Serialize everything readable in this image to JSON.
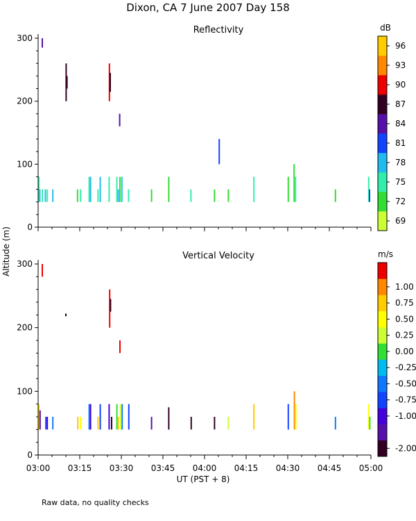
{
  "figure": {
    "title": "Dixon, CA  7 June 2007  Day 158",
    "y_axis_label": "Altitude (m)",
    "x_axis_label": "UT  (PST + 8)",
    "footnote": "Raw data, no quality checks"
  },
  "chart_data": [
    {
      "type": "heatmap",
      "title": "Reflectivity",
      "colorbar_unit": "dB",
      "xlim": [
        0,
        120
      ],
      "ylim": [
        0,
        300
      ],
      "x_ticks": [
        0,
        15,
        30,
        45,
        60,
        75,
        90,
        105,
        120
      ],
      "x_tick_labels": [
        "03:00",
        "03:15",
        "03:30",
        "03:45",
        "04:00",
        "04:15",
        "04:30",
        "04:45",
        "05:00"
      ],
      "y_ticks": [
        0,
        100,
        200,
        300
      ],
      "y_tick_labels": [
        "0",
        "100",
        "200",
        "300"
      ],
      "colorbar": {
        "colors": [
          "#ccff33",
          "#33dd33",
          "#33eeaa",
          "#22bbee",
          "#1144ff",
          "#5511aa",
          "#330022",
          "#ee0000",
          "#ff8800",
          "#ffcc00"
        ],
        "tick_labels": [
          "69",
          "72",
          "75",
          "78",
          "81",
          "84",
          "87",
          "90",
          "93",
          "96"
        ]
      },
      "segments": [
        {
          "t": 0.3,
          "y0": 40,
          "y1": 80,
          "c": "#33eeaa"
        },
        {
          "t": 0.6,
          "y0": 40,
          "y1": 60,
          "c": "#22bbee"
        },
        {
          "t": 1.5,
          "y0": 40,
          "y1": 60,
          "c": "#33eeaa"
        },
        {
          "t": 1.5,
          "y0": 285,
          "y1": 300,
          "c": "#5511aa"
        },
        {
          "t": 2.6,
          "y0": 40,
          "y1": 60,
          "c": "#22bbee"
        },
        {
          "t": 3.3,
          "y0": 40,
          "y1": 60,
          "c": "#33eeaa"
        },
        {
          "t": 5.3,
          "y0": 40,
          "y1": 60,
          "c": "#22bbee"
        },
        {
          "t": 10.1,
          "y0": 200,
          "y1": 260,
          "c": "#330022"
        },
        {
          "t": 10.4,
          "y0": 220,
          "y1": 240,
          "c": "#330022"
        },
        {
          "t": 14.2,
          "y0": 40,
          "y1": 60,
          "c": "#33dd33"
        },
        {
          "t": 15.3,
          "y0": 40,
          "y1": 60,
          "c": "#33eeaa"
        },
        {
          "t": 18.4,
          "y0": 40,
          "y1": 80,
          "c": "#33eeaa"
        },
        {
          "t": 18.9,
          "y0": 40,
          "y1": 80,
          "c": "#22bbee"
        },
        {
          "t": 21.6,
          "y0": 40,
          "y1": 60,
          "c": "#33eeaa"
        },
        {
          "t": 22.4,
          "y0": 40,
          "y1": 80,
          "c": "#22bbee"
        },
        {
          "t": 25.6,
          "y0": 40,
          "y1": 80,
          "c": "#33eeaa"
        },
        {
          "t": 25.7,
          "y0": 200,
          "y1": 260,
          "c": "#ee0000"
        },
        {
          "t": 26.0,
          "y0": 215,
          "y1": 245,
          "c": "#330022"
        },
        {
          "t": 28.4,
          "y0": 40,
          "y1": 80,
          "c": "#33eeaa"
        },
        {
          "t": 28.9,
          "y0": 40,
          "y1": 60,
          "c": "#22bbee"
        },
        {
          "t": 29.4,
          "y0": 160,
          "y1": 180,
          "c": "#5511aa"
        },
        {
          "t": 29.5,
          "y0": 40,
          "y1": 80,
          "c": "#33dd33"
        },
        {
          "t": 30.2,
          "y0": 40,
          "y1": 80,
          "c": "#22bbee"
        },
        {
          "t": 32.6,
          "y0": 40,
          "y1": 60,
          "c": "#33eeaa"
        },
        {
          "t": 40.9,
          "y0": 40,
          "y1": 60,
          "c": "#33dd33"
        },
        {
          "t": 47.1,
          "y0": 40,
          "y1": 80,
          "c": "#33dd33"
        },
        {
          "t": 55.1,
          "y0": 40,
          "y1": 60,
          "c": "#33eeaa"
        },
        {
          "t": 63.6,
          "y0": 40,
          "y1": 60,
          "c": "#33dd33"
        },
        {
          "t": 65.3,
          "y0": 100,
          "y1": 140,
          "c": "#1144ff"
        },
        {
          "t": 68.6,
          "y0": 40,
          "y1": 60,
          "c": "#33dd33"
        },
        {
          "t": 77.8,
          "y0": 40,
          "y1": 80,
          "c": "#33eeaa"
        },
        {
          "t": 90.2,
          "y0": 40,
          "y1": 80,
          "c": "#33dd33"
        },
        {
          "t": 92.3,
          "y0": 40,
          "y1": 100,
          "c": "#33dd33"
        },
        {
          "t": 92.8,
          "y0": 40,
          "y1": 80,
          "c": "#33eeaa"
        },
        {
          "t": 107.2,
          "y0": 40,
          "y1": 60,
          "c": "#33dd33"
        },
        {
          "t": 119.2,
          "y0": 40,
          "y1": 80,
          "c": "#33eeaa"
        },
        {
          "t": 119.5,
          "y0": 40,
          "y1": 60,
          "c": "#1144ff"
        }
      ]
    },
    {
      "type": "heatmap",
      "title": "Vertical Velocity",
      "colorbar_unit": "m/s",
      "xlim": [
        0,
        120
      ],
      "ylim": [
        0,
        300
      ],
      "x_ticks": [
        0,
        15,
        30,
        45,
        60,
        75,
        90,
        105,
        120
      ],
      "x_tick_labels": [
        "03:00",
        "03:15",
        "03:30",
        "03:45",
        "04:00",
        "04:15",
        "04:30",
        "04:45",
        "05:00"
      ],
      "y_ticks": [
        0,
        100,
        200,
        300
      ],
      "y_tick_labels": [
        "0",
        "100",
        "200",
        "300"
      ],
      "colorbar": {
        "colors": [
          "#330022",
          "#5511aa",
          "#4400dd",
          "#1144ff",
          "#1177ff",
          "#00bbee",
          "#33dd33",
          "#ccff33",
          "#ffff00",
          "#ffcc00",
          "#ff8800",
          "#ee0000"
        ],
        "tick_labels": [
          "-2.00",
          "-1.00",
          "-0.75",
          "-0.50",
          "-0.25",
          "0.00",
          "0.25",
          "0.50",
          "0.75",
          "1.00"
        ]
      },
      "segments": [
        {
          "t": 0.3,
          "y0": 40,
          "y1": 80,
          "c": "#ffcc00"
        },
        {
          "t": 0.7,
          "y0": 40,
          "y1": 70,
          "c": "#5511aa"
        },
        {
          "t": 1.5,
          "y0": 280,
          "y1": 300,
          "c": "#ee0000"
        },
        {
          "t": 2.8,
          "y0": 40,
          "y1": 60,
          "c": "#1144ff"
        },
        {
          "t": 3.3,
          "y0": 40,
          "y1": 60,
          "c": "#4400dd"
        },
        {
          "t": 5.3,
          "y0": 40,
          "y1": 60,
          "c": "#1177ff"
        },
        {
          "t": 10.0,
          "y0": 218,
          "y1": 222,
          "c": "#000000"
        },
        {
          "t": 14.3,
          "y0": 40,
          "y1": 60,
          "c": "#ffcc00"
        },
        {
          "t": 15.3,
          "y0": 40,
          "y1": 60,
          "c": "#ffff00"
        },
        {
          "t": 18.4,
          "y0": 40,
          "y1": 80,
          "c": "#1177ff"
        },
        {
          "t": 18.9,
          "y0": 40,
          "y1": 80,
          "c": "#4400dd"
        },
        {
          "t": 21.6,
          "y0": 40,
          "y1": 60,
          "c": "#ffcc00"
        },
        {
          "t": 22.4,
          "y0": 40,
          "y1": 80,
          "c": "#1144ff"
        },
        {
          "t": 25.6,
          "y0": 40,
          "y1": 80,
          "c": "#4400dd"
        },
        {
          "t": 25.8,
          "y0": 200,
          "y1": 260,
          "c": "#ee0000"
        },
        {
          "t": 26.1,
          "y0": 225,
          "y1": 245,
          "c": "#330022"
        },
        {
          "t": 26.5,
          "y0": 40,
          "y1": 60,
          "c": "#330022"
        },
        {
          "t": 28.4,
          "y0": 40,
          "y1": 80,
          "c": "#33dd33"
        },
        {
          "t": 28.9,
          "y0": 40,
          "y1": 60,
          "c": "#ffcc00"
        },
        {
          "t": 29.5,
          "y0": 160,
          "y1": 180,
          "c": "#ee0000"
        },
        {
          "t": 29.7,
          "y0": 40,
          "y1": 80,
          "c": "#ccff33"
        },
        {
          "t": 30.3,
          "y0": 40,
          "y1": 80,
          "c": "#1177ff"
        },
        {
          "t": 32.7,
          "y0": 40,
          "y1": 80,
          "c": "#1144ff"
        },
        {
          "t": 40.9,
          "y0": 40,
          "y1": 60,
          "c": "#5511aa"
        },
        {
          "t": 47.1,
          "y0": 40,
          "y1": 75,
          "c": "#330022"
        },
        {
          "t": 55.2,
          "y0": 40,
          "y1": 60,
          "c": "#330022"
        },
        {
          "t": 63.6,
          "y0": 40,
          "y1": 60,
          "c": "#330022"
        },
        {
          "t": 68.6,
          "y0": 40,
          "y1": 60,
          "c": "#ccff33"
        },
        {
          "t": 77.8,
          "y0": 40,
          "y1": 80,
          "c": "#ffcc00"
        },
        {
          "t": 90.2,
          "y0": 40,
          "y1": 80,
          "c": "#1144ff"
        },
        {
          "t": 92.4,
          "y0": 40,
          "y1": 100,
          "c": "#ff8800"
        },
        {
          "t": 92.9,
          "y0": 40,
          "y1": 80,
          "c": "#ffff00"
        },
        {
          "t": 107.2,
          "y0": 40,
          "y1": 60,
          "c": "#1177ff"
        },
        {
          "t": 119.2,
          "y0": 40,
          "y1": 80,
          "c": "#ffff00"
        },
        {
          "t": 119.6,
          "y0": 40,
          "y1": 60,
          "c": "#33dd33"
        }
      ]
    }
  ]
}
